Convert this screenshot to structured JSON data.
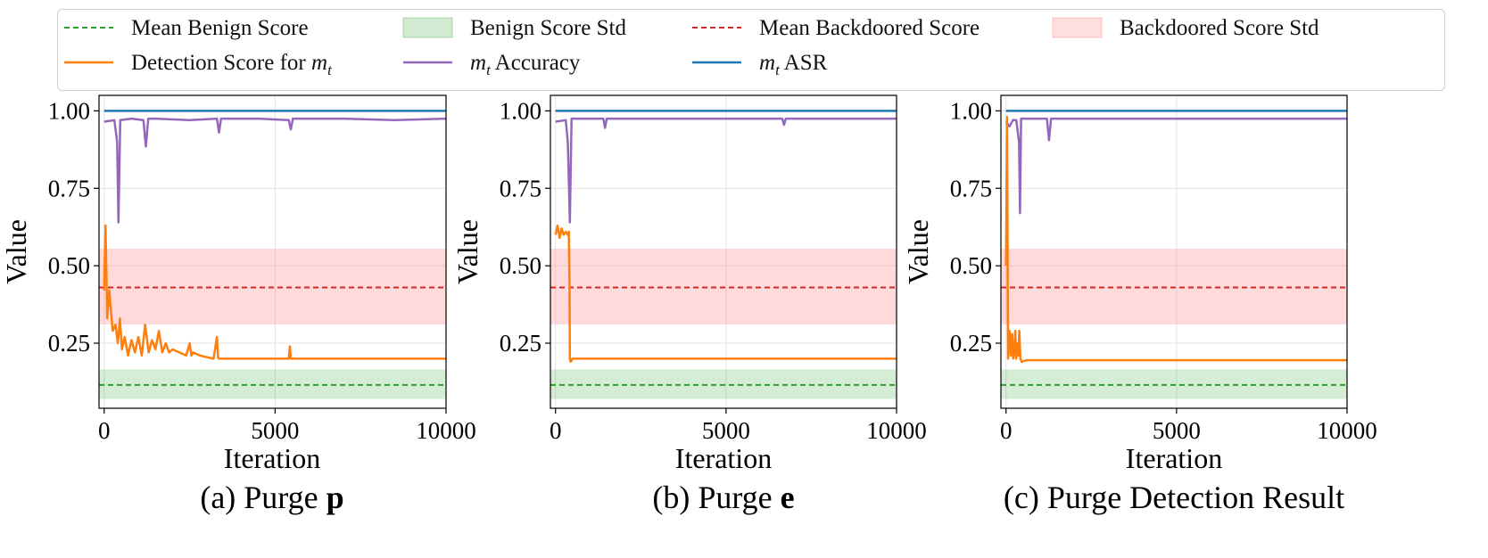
{
  "legend": [
    {
      "label": "Mean Benign Score",
      "kind": "dash",
      "color": "#2ca02c"
    },
    {
      "label": "Detection Score for ",
      "var": "m",
      "sub": "t",
      "kind": "line",
      "color": "#ff7f0e"
    },
    {
      "label": "Benign Score Std",
      "kind": "patch",
      "color": "#2ca02c"
    },
    {
      "var": "m",
      "sub": "t",
      "label": " Accuracy",
      "kind": "line",
      "color": "#9467bd"
    },
    {
      "label": "Mean Backdoored Score",
      "kind": "dash",
      "color": "#d62728"
    },
    {
      "var": "m",
      "sub": "t",
      "label": " ASR",
      "kind": "line",
      "color": "#1f77b4"
    },
    {
      "label": "Backdoored Score Std",
      "kind": "patch",
      "color": "#ff6b6b"
    }
  ],
  "chart_data": [
    {
      "type": "line",
      "caption_prefix": "(a) Purge ",
      "caption_bold": "p",
      "xlabel": "Iteration",
      "ylabel": "Value",
      "xlim": [
        -150,
        10000
      ],
      "ylim": [
        0.04,
        1.05
      ],
      "xticks": [
        0,
        5000,
        10000
      ],
      "yticks": [
        0.25,
        0.5,
        0.75,
        1.0
      ],
      "ytick_labels": [
        "0.25",
        "0.50",
        "0.75",
        "1.00"
      ],
      "mean_benign": 0.115,
      "benign_std": [
        0.07,
        0.165
      ],
      "mean_backdoored": 0.43,
      "backdoored_std": [
        0.31,
        0.555
      ],
      "series": [
        {
          "name": "m_t ASR",
          "color": "#1f77b4",
          "x": [
            0,
            10000
          ],
          "y": [
            1.0,
            1.0
          ]
        },
        {
          "name": "m_t Accuracy",
          "color": "#9467bd",
          "x": [
            0,
            300,
            380,
            420,
            470,
            800,
            1150,
            1220,
            1290,
            1500,
            2500,
            3300,
            3360,
            3420,
            4500,
            5400,
            5460,
            5520,
            7000,
            8500,
            10000
          ],
          "y": [
            0.965,
            0.97,
            0.9,
            0.64,
            0.97,
            0.975,
            0.97,
            0.885,
            0.975,
            0.975,
            0.97,
            0.975,
            0.93,
            0.975,
            0.975,
            0.97,
            0.94,
            0.975,
            0.975,
            0.97,
            0.975
          ]
        },
        {
          "name": "Detection Score for m_t",
          "color": "#ff7f0e",
          "x": [
            0,
            40,
            90,
            150,
            250,
            330,
            400,
            460,
            520,
            600,
            700,
            800,
            900,
            1000,
            1100,
            1200,
            1300,
            1400,
            1500,
            1600,
            1700,
            1800,
            1900,
            2000,
            2200,
            2400,
            2500,
            2550,
            2600,
            2800,
            3000,
            3200,
            3300,
            3330,
            3360,
            3500,
            4000,
            5000,
            5400,
            5430,
            5460,
            6000,
            8000,
            10000
          ],
          "y": [
            0.42,
            0.63,
            0.33,
            0.42,
            0.29,
            0.31,
            0.25,
            0.33,
            0.23,
            0.27,
            0.21,
            0.26,
            0.22,
            0.27,
            0.21,
            0.31,
            0.22,
            0.26,
            0.23,
            0.29,
            0.22,
            0.25,
            0.22,
            0.23,
            0.22,
            0.21,
            0.25,
            0.21,
            0.22,
            0.21,
            0.205,
            0.2,
            0.27,
            0.205,
            0.2,
            0.2,
            0.2,
            0.2,
            0.2,
            0.24,
            0.2,
            0.2,
            0.2,
            0.2
          ]
        }
      ]
    },
    {
      "type": "line",
      "caption_prefix": "(b) Purge ",
      "caption_bold": "e",
      "xlabel": "Iteration",
      "ylabel": "Value",
      "xlim": [
        -150,
        10000
      ],
      "ylim": [
        0.04,
        1.05
      ],
      "xticks": [
        0,
        5000,
        10000
      ],
      "yticks": [
        0.25,
        0.5,
        0.75,
        1.0
      ],
      "ytick_labels": [
        "0.25",
        "0.50",
        "0.75",
        "1.00"
      ],
      "mean_benign": 0.115,
      "benign_std": [
        0.07,
        0.165
      ],
      "mean_backdoored": 0.43,
      "backdoored_std": [
        0.31,
        0.555
      ],
      "series": [
        {
          "name": "m_t ASR",
          "color": "#1f77b4",
          "x": [
            0,
            10000
          ],
          "y": [
            1.0,
            1.0
          ]
        },
        {
          "name": "m_t Accuracy",
          "color": "#9467bd",
          "x": [
            0,
            300,
            360,
            420,
            470,
            1000,
            1400,
            1450,
            1500,
            3000,
            6000,
            6650,
            6700,
            6750,
            8000,
            10000
          ],
          "y": [
            0.965,
            0.97,
            0.9,
            0.64,
            0.975,
            0.975,
            0.975,
            0.945,
            0.975,
            0.975,
            0.975,
            0.975,
            0.955,
            0.975,
            0.975,
            0.975
          ]
        },
        {
          "name": "Detection Score for m_t",
          "color": "#ff7f0e",
          "x": [
            0,
            60,
            120,
            180,
            240,
            300,
            360,
            390,
            410,
            420,
            440,
            500,
            700,
            1000,
            5000,
            10000
          ],
          "y": [
            0.6,
            0.63,
            0.59,
            0.62,
            0.6,
            0.61,
            0.6,
            0.61,
            0.45,
            0.2,
            0.19,
            0.2,
            0.2,
            0.2,
            0.2,
            0.2
          ]
        }
      ]
    },
    {
      "type": "line",
      "caption_prefix": "(c) Purge Detection Result",
      "caption_bold": "",
      "xlabel": "Iteration",
      "ylabel": "Value",
      "xlim": [
        -150,
        10000
      ],
      "ylim": [
        0.04,
        1.05
      ],
      "xticks": [
        0,
        5000,
        10000
      ],
      "yticks": [
        0.25,
        0.5,
        0.75,
        1.0
      ],
      "ytick_labels": [
        "0.25",
        "0.50",
        "0.75",
        "1.00"
      ],
      "mean_benign": 0.115,
      "benign_std": [
        0.07,
        0.165
      ],
      "mean_backdoored": 0.43,
      "backdoored_std": [
        0.31,
        0.555
      ],
      "series": [
        {
          "name": "m_t ASR",
          "color": "#1f77b4",
          "x": [
            0,
            10000
          ],
          "y": [
            1.0,
            1.0
          ]
        },
        {
          "name": "m_t Accuracy",
          "color": "#9467bd",
          "x": [
            0,
            100,
            200,
            300,
            380,
            410,
            440,
            500,
            1200,
            1260,
            1320,
            2000,
            5000,
            10000
          ],
          "y": [
            0.965,
            0.95,
            0.97,
            0.97,
            0.9,
            0.67,
            0.975,
            0.975,
            0.975,
            0.905,
            0.975,
            0.975,
            0.975,
            0.975
          ]
        },
        {
          "name": "Detection Score for m_t",
          "color": "#ff7f0e",
          "x": [
            0,
            30,
            60,
            100,
            140,
            180,
            210,
            240,
            270,
            300,
            330,
            360,
            390,
            420,
            460,
            600,
            1000,
            5000,
            10000
          ],
          "y": [
            0.5,
            0.98,
            0.2,
            0.29,
            0.21,
            0.28,
            0.2,
            0.22,
            0.29,
            0.2,
            0.25,
            0.21,
            0.29,
            0.2,
            0.19,
            0.195,
            0.195,
            0.195,
            0.195
          ]
        }
      ]
    }
  ]
}
